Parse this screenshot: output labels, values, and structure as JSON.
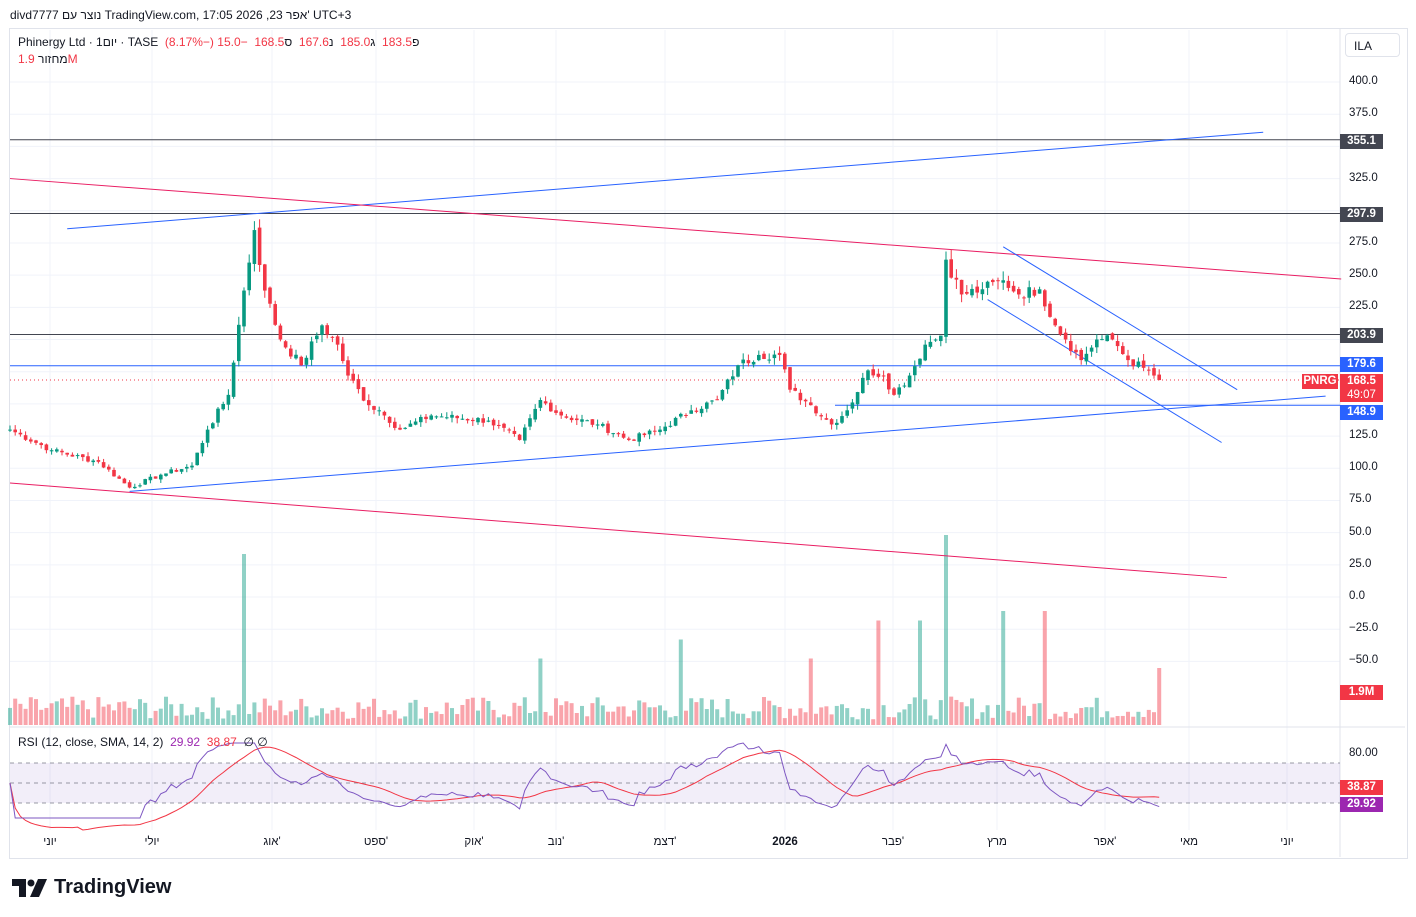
{
  "header": {
    "caption": "divd7777 נוצר עם TradingView.com, 17:05 2026 ,23 אפר' UTC+3"
  },
  "legend": {
    "symbol": "Phinergy Ltd · 1יום · TASE",
    "open_label": "פ",
    "open": "183.5",
    "high_label": "ג",
    "high": "185.0",
    "low_label": "נ",
    "low": "167.6",
    "close_label": "ס",
    "close": "168.5",
    "change": "−15.0 (−8.17%)",
    "volume_label": "מחזור",
    "volume": "1.9M"
  },
  "currency": "ILA",
  "rsi": {
    "label": "RSI (12, close, SMA, 14, 2)",
    "value": "29.92",
    "sma": "38.87",
    "e1": "∅",
    "e2": "∅",
    "axis": "80.00",
    "tag_sma": "38.87",
    "tag_rsi": "29.92"
  },
  "price_axis": [
    "400.0",
    "375.0",
    "325.0",
    "275.0",
    "250.0",
    "225.0",
    "125.0",
    "100.0",
    "75.0",
    "50.0",
    "25.0",
    "0.0",
    "−25.0",
    "−50.0"
  ],
  "tags": {
    "l355": "355.1",
    "l297": "297.9",
    "l203": "203.9",
    "l179": "179.6",
    "l148": "148.9",
    "symbol": "PNRG",
    "last": "168.5",
    "countdown": "49:07",
    "vol": "1.9M"
  },
  "time_axis": [
    "יוני",
    "יולי",
    "אוג'",
    "ספט'",
    "אוק'",
    "נוב'",
    "דצמ'",
    "2026",
    "פבר'",
    "מרץ",
    "אפר'",
    "מאי",
    "יוני"
  ],
  "brand": "TradingView",
  "chart_data": {
    "type": "candlestick",
    "keypoints_day": [
      0,
      8,
      17,
      23,
      29,
      35,
      38,
      42,
      45,
      47,
      49,
      52,
      56,
      60,
      63,
      65,
      69,
      71,
      75,
      81,
      92,
      98,
      102,
      106,
      113,
      119,
      125,
      131,
      136,
      140,
      144,
      148,
      150,
      154,
      158,
      161,
      165,
      168,
      170,
      173,
      176,
      179,
      180,
      183,
      187,
      191,
      194,
      198,
      201,
      203,
      206,
      209,
      212,
      215,
      218,
      220,
      221
    ],
    "keypoints_close": [
      130,
      114,
      105,
      85,
      95,
      102,
      130,
      157,
      238,
      285,
      238,
      200,
      180,
      211,
      196,
      172,
      149,
      145,
      130,
      141,
      137,
      122,
      153,
      141,
      134,
      122,
      130,
      145,
      153,
      180,
      188,
      188,
      161,
      149,
      134,
      145,
      176,
      172,
      157,
      172,
      196,
      203,
      262,
      235,
      239,
      246,
      235,
      239,
      211,
      200,
      184,
      200,
      200,
      184,
      178,
      172,
      168.5
    ],
    "levels": [
      355.1,
      297.9,
      203.9,
      179.6,
      148.9
    ],
    "trendlines": [
      {
        "color": "#2962ff",
        "from": [
          11,
          286
        ],
        "to": [
          241,
          361
        ]
      },
      {
        "color": "#e91e63",
        "from": [
          0,
          325
        ],
        "to": [
          256,
          247
        ]
      },
      {
        "color": "#2962ff",
        "from": [
          23,
          82
        ],
        "to": [
          253,
          156
        ]
      },
      {
        "color": "#e91e63",
        "from": [
          0,
          88.5
        ],
        "to": [
          234,
          15
        ]
      },
      {
        "color": "#2962ff",
        "from": [
          191,
          272
        ],
        "to": [
          236,
          161
        ]
      },
      {
        "color": "#2962ff",
        "from": [
          188,
          231
        ],
        "to": [
          233,
          120
        ]
      }
    ],
    "volume_spikes": {
      "45": 0.9,
      "180": 1.0,
      "167": 0.55,
      "175": 0.55,
      "191": 0.6,
      "199": 0.6,
      "129": 0.45,
      "102": 0.35,
      "154": 0.35,
      "221": 0.3
    },
    "colors": {
      "up": "#089981",
      "down": "#f23645",
      "rsi": "#7e57c2",
      "rsi_sma": "#f23645"
    }
  }
}
